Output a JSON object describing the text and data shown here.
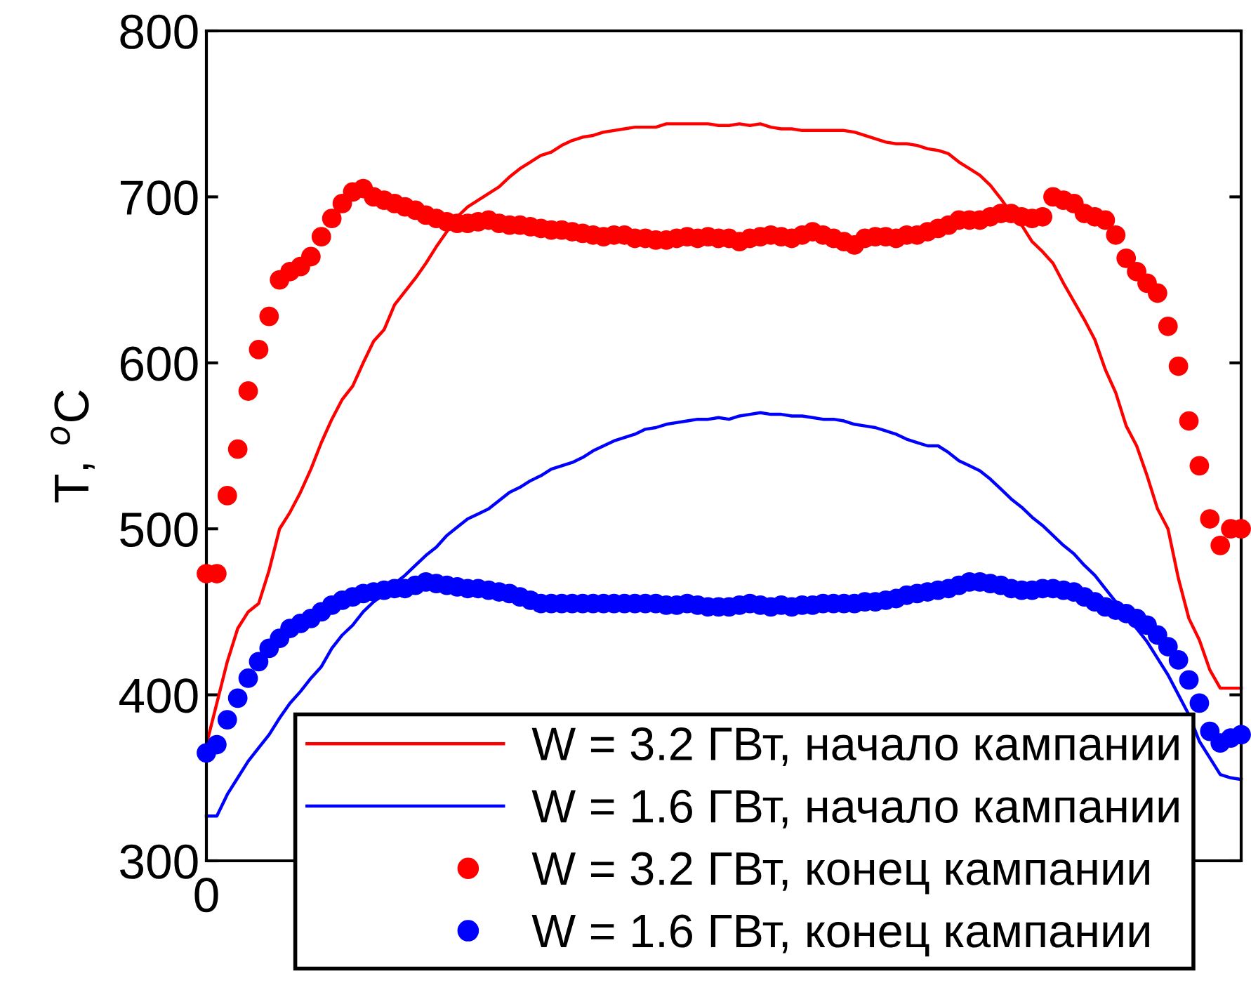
{
  "chart_data": {
    "type": "line",
    "ylabel": "T, $^{o}$C",
    "categories": [
      "0",
      null,
      null,
      null,
      null,
      null,
      null,
      null,
      null,
      null,
      null,
      null,
      null,
      null,
      null,
      null,
      null,
      null,
      null,
      null,
      null,
      null,
      null,
      null,
      null,
      null,
      null,
      null,
      null,
      null,
      null,
      null,
      null,
      null,
      null,
      null,
      null,
      null,
      null,
      null,
      null,
      null,
      null,
      null,
      null,
      null,
      null,
      null,
      null,
      null,
      null,
      null,
      null,
      null,
      null,
      null,
      null,
      null,
      null,
      null,
      null,
      null,
      null,
      null,
      null,
      null,
      null,
      null,
      null,
      null,
      null,
      null,
      null,
      null,
      null,
      null,
      null,
      null,
      null,
      null,
      null,
      null,
      null,
      null,
      null,
      null,
      null,
      null,
      null,
      null,
      null,
      null,
      null,
      null,
      null,
      null,
      null,
      null,
      null,
      null
    ],
    "ylim": [
      300,
      800
    ],
    "yticks": [
      300,
      400,
      500,
      600,
      700,
      800
    ],
    "legend": "bottom",
    "series": [
      {
        "name": "W = 3.2 ГВт, начало кампании",
        "type": "line",
        "color": "#ff0000",
        "values": [
          370,
          395,
          420,
          440,
          450,
          455,
          475,
          500,
          510,
          522,
          536,
          552,
          566,
          578,
          586,
          600,
          613,
          620,
          635,
          643,
          651,
          660,
          670,
          679,
          688,
          694,
          698,
          702,
          706,
          712,
          717,
          721,
          725,
          727,
          731,
          734,
          736,
          737,
          739,
          740,
          741,
          742,
          742,
          742,
          744,
          744,
          744,
          744,
          744,
          743,
          743,
          744,
          743,
          744,
          742,
          741,
          741,
          740,
          740,
          740,
          740,
          740,
          739,
          737,
          735,
          733,
          732,
          732,
          731,
          729,
          728,
          726,
          721,
          717,
          713,
          707,
          699,
          690,
          683,
          673,
          667,
          660,
          648,
          637,
          626,
          614,
          596,
          582,
          562,
          550,
          532,
          512,
          500,
          470,
          446,
          433,
          415,
          404,
          404,
          404
        ]
      },
      {
        "name": "W = 1.6 ГВт, начало кампании",
        "type": "line",
        "color": "#0000ff",
        "values": [
          327,
          327,
          340,
          350,
          360,
          368,
          376,
          386,
          395,
          402,
          410,
          417,
          428,
          436,
          442,
          450,
          456,
          461,
          467,
          472,
          478,
          484,
          489,
          496,
          501,
          506,
          509,
          512,
          517,
          522,
          525,
          529,
          532,
          536,
          538,
          540,
          543,
          547,
          550,
          553,
          555,
          557,
          560,
          561,
          563,
          564,
          565,
          566,
          566,
          567,
          566,
          568,
          569,
          570,
          569,
          569,
          568,
          568,
          567,
          566,
          566,
          565,
          563,
          562,
          561,
          559,
          557,
          554,
          552,
          550,
          550,
          546,
          541,
          538,
          535,
          530,
          524,
          518,
          513,
          507,
          502,
          496,
          490,
          485,
          478,
          472,
          464,
          456,
          448,
          440,
          432,
          422,
          412,
          400,
          388,
          372,
          362,
          352,
          350,
          349
        ]
      },
      {
        "name": "W = 3.2 ГВт, конец кампании",
        "type": "scatter",
        "marker": "circle",
        "color": "#ff0000",
        "values": [
          473,
          473,
          520,
          548,
          583,
          608,
          628,
          650,
          655,
          658,
          664,
          676,
          687,
          696,
          703,
          705,
          700,
          698,
          696,
          694,
          692,
          689,
          687,
          685,
          684,
          684,
          685,
          686,
          684,
          683,
          683,
          682,
          681,
          680,
          680,
          679,
          678,
          677,
          676,
          677,
          677,
          675,
          675,
          674,
          674,
          675,
          676,
          675,
          676,
          675,
          675,
          673,
          675,
          676,
          677,
          676,
          675,
          677,
          679,
          677,
          675,
          673,
          671,
          675,
          676,
          676,
          675,
          677,
          677,
          679,
          681,
          683,
          686,
          686,
          686,
          688,
          690,
          690,
          688,
          687,
          688,
          700,
          698,
          696,
          690,
          688,
          686,
          677,
          663,
          655,
          648,
          642,
          622,
          598,
          565,
          538,
          506,
          490,
          500,
          500
        ]
      },
      {
        "name": "W = 1.6 ГВт, конец кампании",
        "type": "scatter",
        "marker": "circle",
        "color": "#0000ff",
        "values": [
          365,
          370,
          385,
          398,
          410,
          420,
          428,
          434,
          440,
          443,
          446,
          450,
          454,
          457,
          459,
          461,
          462,
          463,
          464,
          464,
          466,
          468,
          467,
          466,
          465,
          464,
          464,
          463,
          462,
          461,
          459,
          457,
          455,
          455,
          455,
          455,
          455,
          455,
          455,
          455,
          455,
          455,
          455,
          455,
          454,
          454,
          455,
          454,
          453,
          453,
          453,
          454,
          455,
          454,
          453,
          454,
          453,
          454,
          454,
          455,
          455,
          455,
          455,
          456,
          456,
          457,
          458,
          460,
          461,
          462,
          463,
          464,
          466,
          468,
          468,
          467,
          466,
          464,
          463,
          463,
          464,
          464,
          463,
          462,
          459,
          456,
          453,
          451,
          449,
          446,
          442,
          436,
          429,
          421,
          409,
          395,
          378,
          371,
          374,
          376
        ]
      }
    ]
  }
}
